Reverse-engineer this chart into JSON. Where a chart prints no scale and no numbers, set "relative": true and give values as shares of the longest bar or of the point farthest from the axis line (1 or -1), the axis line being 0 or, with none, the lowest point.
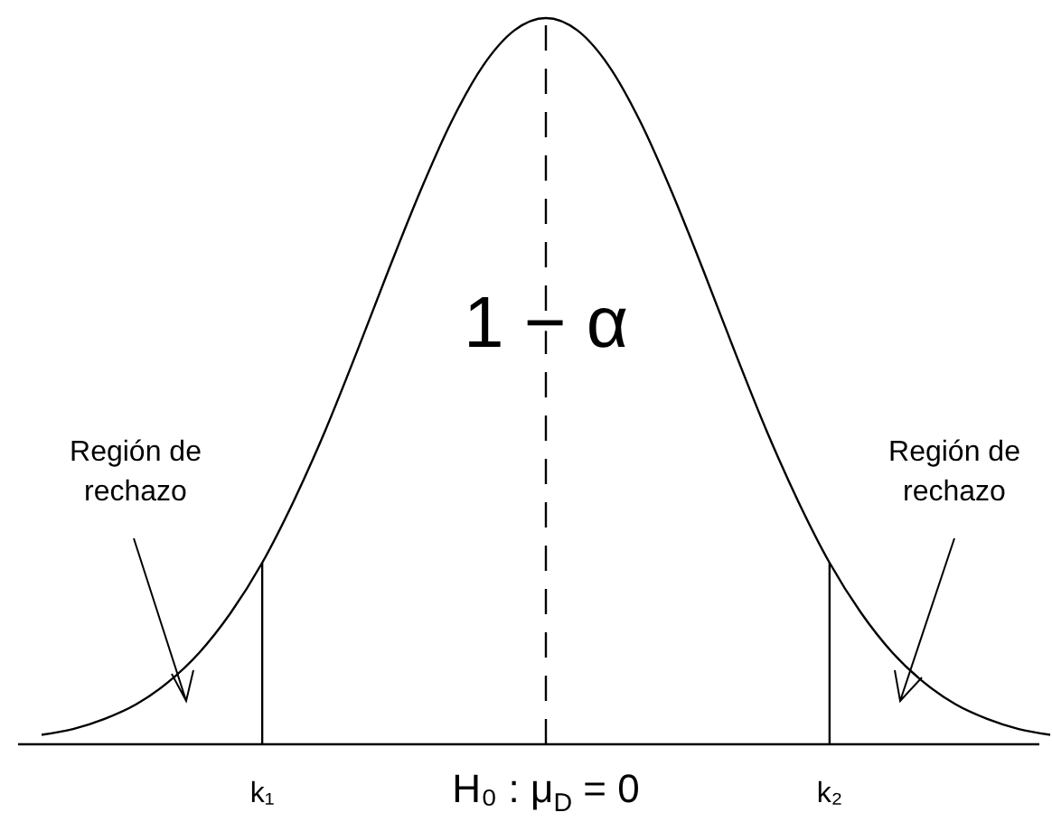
{
  "chart_data": {
    "type": "line",
    "relative": true,
    "categories": [
      null,
      null,
      null,
      null,
      null,
      null,
      null,
      "k₁",
      null,
      null,
      null,
      null,
      null,
      null,
      null,
      null,
      "H₀ : μ$_{D}$ = 0",
      null,
      null,
      null,
      null,
      null,
      null,
      null,
      null,
      "k₂",
      null,
      null,
      null,
      null,
      null,
      null,
      null
    ],
    "series": [
      {
        "color": "#000000",
        "values": [
          0.013,
          0.021,
          0.035,
          0.055,
          0.085,
          0.126,
          0.181,
          0.25,
          0.335,
          0.432,
          0.54,
          0.652,
          0.76,
          0.857,
          0.934,
          0.983,
          1,
          0.983,
          0.934,
          0.857,
          0.76,
          0.652,
          0.54,
          0.432,
          0.335,
          0.25,
          0.181,
          0.126,
          0.085,
          0.055,
          0.035,
          0.021,
          0.013
        ]
      }
    ],
    "ref_lines": [
      {
        "axis": "x",
        "value": "k₁",
        "color": "#000000",
        "line_style": "solid"
      },
      {
        "axis": "x",
        "value": "H₀ : μ$_{D}$ = 0",
        "color": "#000000",
        "line_style": "dashed"
      },
      {
        "axis": "x",
        "value": "k₂",
        "color": "#000000",
        "line_style": "solid"
      }
    ],
    "annotations": [
      "1 − α",
      "Región de rechazo",
      "Región de rechazo"
    ],
    "line_style": "solid"
  }
}
